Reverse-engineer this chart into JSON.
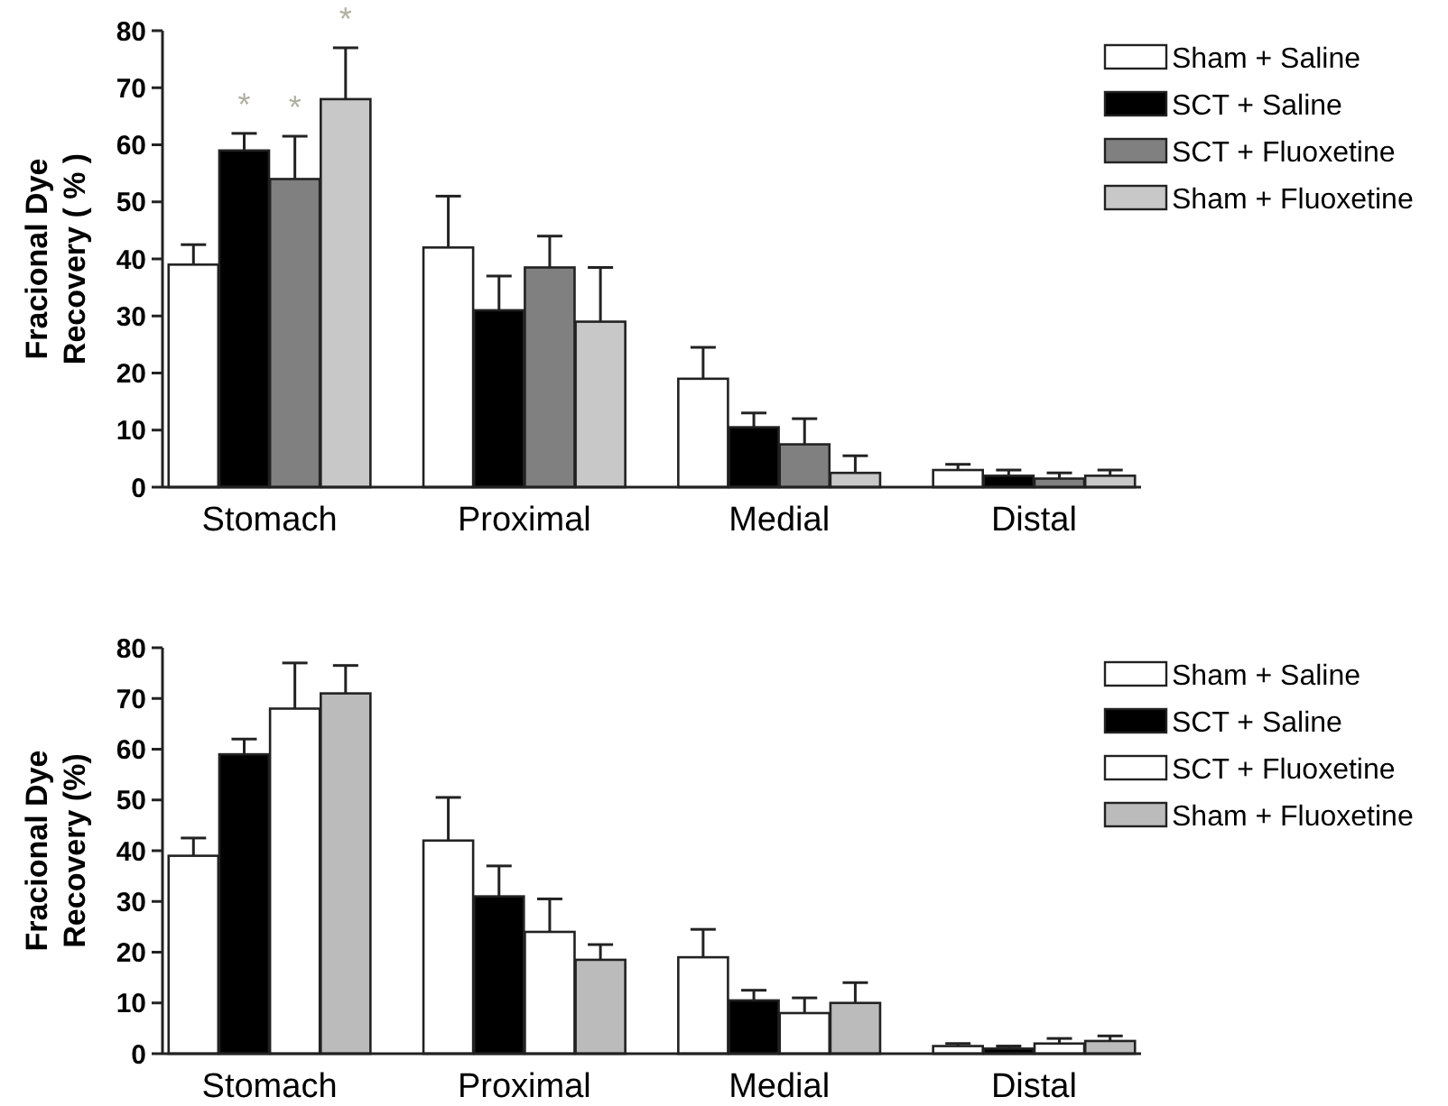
{
  "chart_data": [
    {
      "type": "bar",
      "ylabel": "Fracional Dye Recovery ( % )",
      "categories": [
        "Stomach",
        "Proximal",
        "Medial",
        "Distal"
      ],
      "ylim": [
        0,
        80
      ],
      "yticks": [
        0,
        10,
        20,
        30,
        40,
        50,
        60,
        70,
        80
      ],
      "legend": "top right",
      "grid": false,
      "series": [
        {
          "name": "Sham + Saline",
          "color": "#ffffff",
          "values": [
            39,
            42,
            19,
            3
          ],
          "errors": [
            [
              39,
              42.5
            ],
            [
              42,
              51
            ],
            [
              19,
              24.5
            ],
            [
              3,
              4
            ]
          ]
        },
        {
          "name": "SCT + Saline",
          "color": "#000000",
          "values": [
            59,
            31,
            10.5,
            2
          ],
          "errors": [
            [
              59,
              62
            ],
            [
              31,
              37
            ],
            [
              10.5,
              13
            ],
            [
              2,
              3
            ]
          ]
        },
        {
          "name": "SCT + Fluoxetine",
          "color": "#808080",
          "values": [
            54,
            38.5,
            7.5,
            1.5
          ],
          "errors": [
            [
              54,
              61.5
            ],
            [
              38.5,
              44
            ],
            [
              7.5,
              12
            ],
            [
              1.5,
              2.5
            ]
          ]
        },
        {
          "name": "Sham + Fluoxetine",
          "color": "#c8c8c8",
          "values": [
            68,
            29,
            2.5,
            2
          ],
          "errors": [
            [
              68,
              77
            ],
            [
              29,
              38.5
            ],
            [
              2.5,
              5.5
            ],
            [
              2,
              3
            ]
          ]
        }
      ],
      "annotations": [
        "*",
        "*",
        "*"
      ]
    },
    {
      "type": "bar",
      "ylabel": "Fracional Dye Recovery (%)",
      "categories": [
        "Stomach",
        "Proximal",
        "Medial",
        "Distal"
      ],
      "ylim": [
        0,
        80
      ],
      "yticks": [
        0,
        10,
        20,
        30,
        40,
        50,
        60,
        70,
        80
      ],
      "legend": "top right",
      "grid": false,
      "series": [
        {
          "name": "Sham + Saline",
          "color": "#ffffff",
          "values": [
            39,
            42,
            19,
            1.5
          ],
          "errors": [
            [
              39,
              42.5
            ],
            [
              42,
              50.5
            ],
            [
              19,
              24.5
            ],
            [
              1.5,
              2
            ]
          ]
        },
        {
          "name": "SCT + Saline",
          "color": "#000000",
          "values": [
            59,
            31,
            10.5,
            1
          ],
          "errors": [
            [
              59,
              62
            ],
            [
              31,
              37
            ],
            [
              10.5,
              12.5
            ],
            [
              1,
              1.5
            ]
          ]
        },
        {
          "name": "SCT + Fluoxetine",
          "color": "#ffffff",
          "values": [
            68,
            24,
            8,
            2
          ],
          "errors": [
            [
              68,
              77
            ],
            [
              24,
              30.5
            ],
            [
              8,
              11
            ],
            [
              2,
              3
            ]
          ]
        },
        {
          "name": "Sham + Fluoxetine",
          "color": "#bbbbbb",
          "values": [
            71,
            18.5,
            10,
            2.5
          ],
          "errors": [
            [
              71,
              76.5
            ],
            [
              18.5,
              21.5
            ],
            [
              10,
              14
            ],
            [
              2.5,
              3.5
            ]
          ]
        }
      ]
    }
  ]
}
